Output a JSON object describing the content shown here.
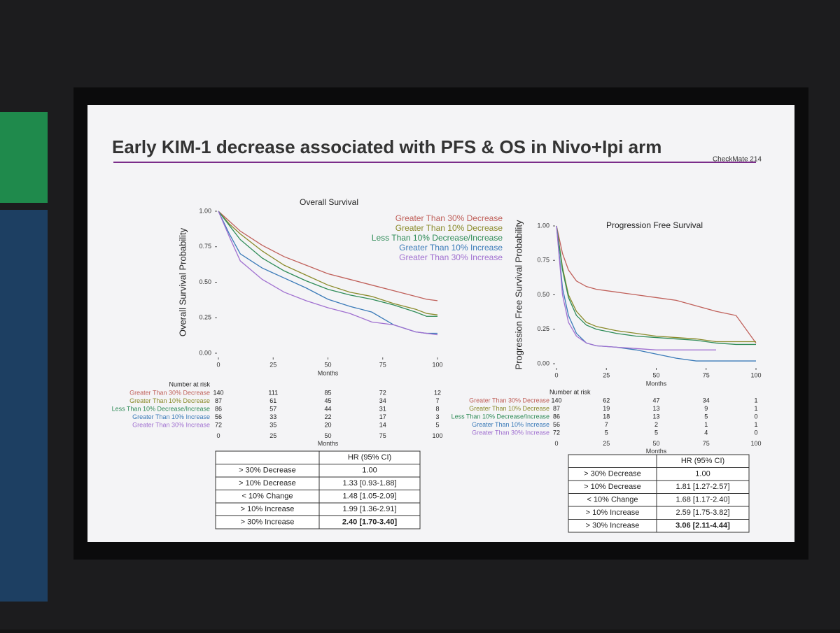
{
  "slide": {
    "title": "Early KIM-1 decrease associated with PFS & OS in Nivo+Ipi arm",
    "tag": "CheckMate 214"
  },
  "chart_data": [
    {
      "type": "line",
      "title": "Overall Survival",
      "x_label": "Months",
      "y_label": "Overall Survival Probability",
      "xlim": [
        0,
        100
      ],
      "ylim": [
        0,
        1
      ],
      "xticks": [
        0,
        25,
        50,
        75,
        100
      ],
      "yticks": [
        {
          "value": 0,
          "label": "0.00"
        },
        {
          "value": 0.25,
          "label": "0.25"
        },
        {
          "value": 0.5,
          "label": "0.50"
        },
        {
          "value": 0.75,
          "label": "0.75"
        },
        {
          "value": 1,
          "label": "1.00"
        }
      ],
      "x": [
        0,
        5,
        10,
        20,
        30,
        40,
        50,
        60,
        70,
        80,
        90,
        95,
        100
      ],
      "series": [
        {
          "name": "Greater Than 30% Decrease",
          "color": "#c0605a",
          "values": [
            1,
            0.93,
            0.86,
            0.76,
            0.68,
            0.62,
            0.56,
            0.52,
            0.48,
            0.44,
            0.4,
            0.38,
            0.37
          ],
          "at_risk": [
            140,
            111,
            85,
            72,
            12
          ]
        },
        {
          "name": "Greater Than 10% Decrease",
          "color": "#8a8a2a",
          "values": [
            1,
            0.91,
            0.84,
            0.72,
            0.62,
            0.55,
            0.48,
            0.43,
            0.4,
            0.35,
            0.31,
            0.28,
            0.27
          ],
          "at_risk": [
            87,
            61,
            45,
            34,
            7
          ]
        },
        {
          "name": "Less Than 10% Decrease/Increase",
          "color": "#2e8b57",
          "values": [
            1,
            0.9,
            0.8,
            0.67,
            0.58,
            0.51,
            0.45,
            0.41,
            0.38,
            0.34,
            0.29,
            0.26,
            0.26
          ],
          "at_risk": [
            86,
            57,
            44,
            31,
            8
          ]
        },
        {
          "name": "Greater Than 10% Increase",
          "color": "#3a7ab8",
          "values": [
            1,
            0.84,
            0.7,
            0.6,
            0.53,
            0.46,
            0.38,
            0.33,
            0.29,
            0.2,
            0.15,
            0.14,
            0.14
          ],
          "at_risk": [
            56,
            33,
            22,
            17,
            3
          ]
        },
        {
          "name": "Greater Than 30% Increase",
          "color": "#a070d0",
          "values": [
            1,
            0.82,
            0.65,
            0.52,
            0.43,
            0.37,
            0.32,
            0.28,
            0.22,
            0.2,
            0.15,
            0.14,
            0.13
          ],
          "at_risk": [
            72,
            35,
            20,
            14,
            5
          ]
        }
      ],
      "risk_title": "Number at risk",
      "hr_table": {
        "header": "HR (95% CI)",
        "rows": [
          [
            "> 30% Decrease",
            "1.00"
          ],
          [
            "> 10% Decrease",
            "1.33 [0.93-1.88]"
          ],
          [
            "< 10% Change",
            "1.48 [1.05-2.09]"
          ],
          [
            "> 10% Increase",
            "1.99 [1.36-2.91]"
          ],
          [
            "> 30% Increase",
            "2.40 [1.70-3.40]"
          ]
        ]
      }
    },
    {
      "type": "line",
      "title": "Progression Free Survival",
      "x_label": "Months",
      "y_label": "Progression Free Survival Probability",
      "xlim": [
        0,
        100
      ],
      "ylim": [
        0,
        1
      ],
      "xticks": [
        0,
        25,
        50,
        75,
        100
      ],
      "yticks": [
        {
          "value": 0,
          "label": "0.00"
        },
        {
          "value": 0.25,
          "label": "0.25"
        },
        {
          "value": 0.5,
          "label": "0.50"
        },
        {
          "value": 0.75,
          "label": "0.75"
        },
        {
          "value": 1,
          "label": "1.00"
        }
      ],
      "x": [
        0,
        3,
        6,
        10,
        15,
        20,
        30,
        40,
        50,
        60,
        70,
        80,
        90,
        100
      ],
      "series": [
        {
          "name": "Greater Than 30% Decrease",
          "color": "#c0605a",
          "values": [
            1,
            0.8,
            0.68,
            0.6,
            0.56,
            0.54,
            0.52,
            0.5,
            0.48,
            0.46,
            0.42,
            0.38,
            0.35,
            0.15
          ],
          "at_risk": [
            140,
            62,
            47,
            34,
            1
          ]
        },
        {
          "name": "Greater Than 10% Decrease",
          "color": "#8a8a2a",
          "values": [
            1,
            0.7,
            0.5,
            0.38,
            0.3,
            0.27,
            0.24,
            0.22,
            0.2,
            0.19,
            0.18,
            0.16,
            0.16,
            0.16
          ],
          "at_risk": [
            87,
            19,
            13,
            9,
            1
          ]
        },
        {
          "name": "Less Than 10% Decrease/Increase",
          "color": "#2e8b57",
          "values": [
            1,
            0.68,
            0.48,
            0.35,
            0.28,
            0.25,
            0.22,
            0.2,
            0.19,
            0.18,
            0.17,
            0.15,
            0.14,
            0.14
          ],
          "at_risk": [
            86,
            18,
            13,
            5,
            0
          ]
        },
        {
          "name": "Greater Than 10% Increase",
          "color": "#3a7ab8",
          "values": [
            1,
            0.55,
            0.35,
            0.22,
            0.15,
            0.13,
            0.12,
            0.1,
            0.07,
            0.04,
            0.02,
            0.02,
            0.02,
            0.02
          ],
          "at_risk": [
            56,
            7,
            2,
            1,
            1
          ]
        },
        {
          "name": "Greater Than 30% Increase",
          "color": "#a070d0",
          "values": [
            1,
            0.5,
            0.3,
            0.2,
            0.15,
            0.13,
            0.12,
            0.11,
            0.1,
            0.1,
            0.1,
            0.1,
            null,
            null
          ],
          "at_risk": [
            72,
            5,
            5,
            4,
            0
          ]
        }
      ],
      "risk_title": "Number at risk",
      "hr_table": {
        "header": "HR (95% CI)",
        "rows": [
          [
            "> 30% Decrease",
            "1.00"
          ],
          [
            "> 10% Decrease",
            "1.81 [1.27-2.57]"
          ],
          [
            "< 10% Change",
            "1.68 [1.17-2.40]"
          ],
          [
            "> 10% Increase",
            "2.59 [1.75-3.82]"
          ],
          [
            "> 30% Increase",
            "3.06 [2.11-4.44]"
          ]
        ]
      }
    }
  ]
}
